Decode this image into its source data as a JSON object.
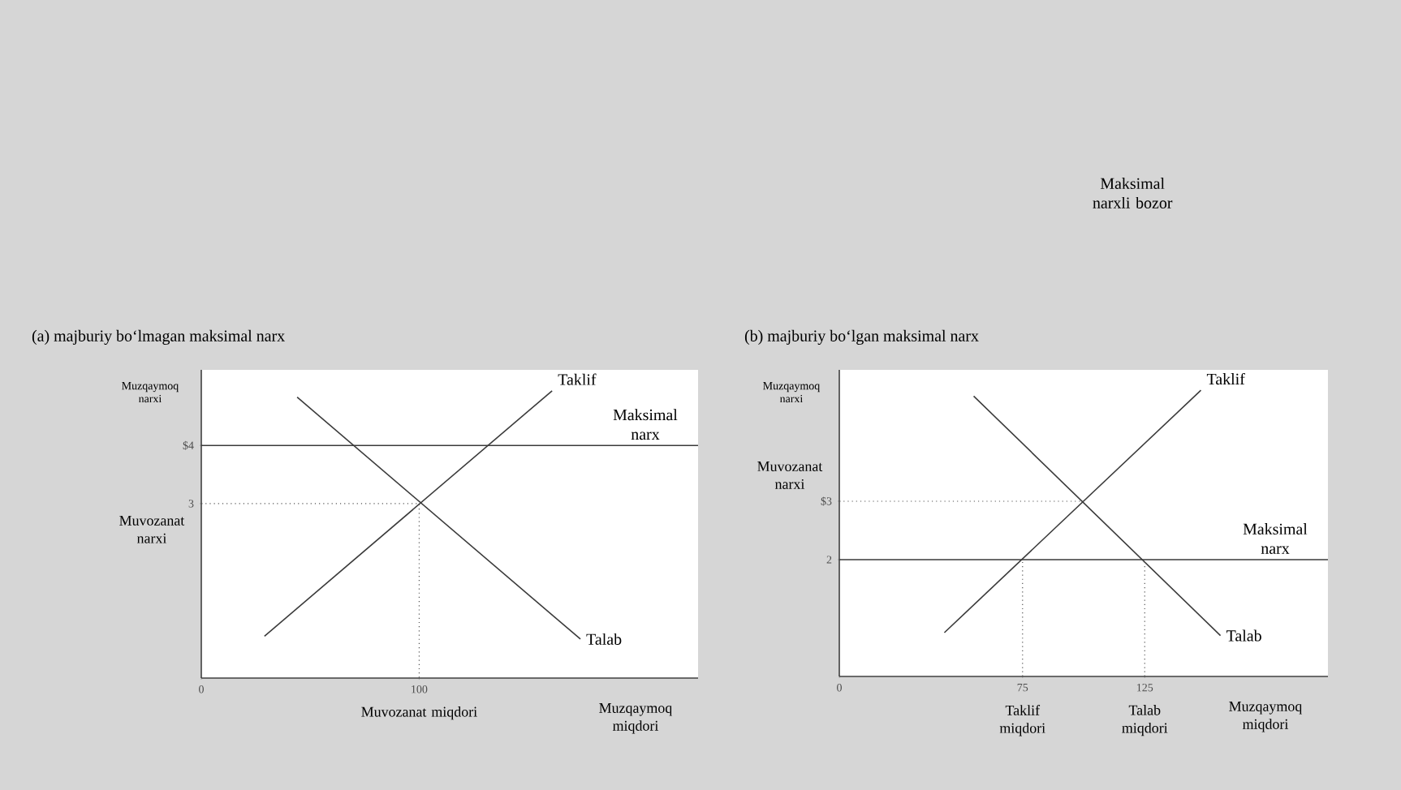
{
  "chart_data": [
    {
      "type": "line",
      "title": "(a) majburiy bo‘lmagan maksimal narx",
      "xlabel": "Muzqaymoq miqdori",
      "ylabel": "Muzqaymoq narxi",
      "xlim": [
        0,
        228
      ],
      "ylim": [
        0,
        5.3
      ],
      "xticks": [
        0,
        100
      ],
      "yticks": [
        3,
        {
          "value": 4,
          "label": "$4"
        }
      ],
      "series": [
        {
          "name": "Taklif",
          "color": "#3a3a3a",
          "x": [
            29,
            161
          ],
          "values": [
            0.72,
            4.94
          ]
        },
        {
          "name": "Talab",
          "color": "#3a3a3a",
          "x": [
            44,
            174
          ],
          "values": [
            4.83,
            0.67
          ]
        },
        {
          "color": "#555555",
          "line_style": "dotted",
          "x": [
            0,
            100,
            100
          ],
          "values": [
            3,
            3,
            0
          ]
        }
      ],
      "ref_lines": [
        {
          "axis": "y",
          "value": 4,
          "label": "Maksimal narx",
          "color": "#3a3a3a"
        }
      ],
      "annotations": [
        {
          "text": "Muvozanat narxi",
          "x": 0,
          "y": 3
        },
        {
          "text": "Muvozanat miqdori",
          "x": 100,
          "y": 0
        }
      ],
      "grid": false,
      "marker": "none"
    },
    {
      "type": "line",
      "title": "(b) majburiy bo‘lgan maksimal narx",
      "xlabel": "Muzqaymoq miqdori",
      "ylabel": "Muzqaymoq narxi",
      "xlim": [
        0,
        200
      ],
      "ylim": [
        0,
        5.25
      ],
      "xticks": [
        0,
        75,
        125
      ],
      "yticks": [
        2,
        {
          "value": 3,
          "label": "$3"
        }
      ],
      "series": [
        {
          "name": "Taklif",
          "color": "#3a3a3a",
          "x": [
            43,
            148
          ],
          "values": [
            0.75,
            4.9
          ]
        },
        {
          "name": "Talab",
          "color": "#3a3a3a",
          "x": [
            55,
            156
          ],
          "values": [
            4.8,
            0.7
          ]
        },
        {
          "color": "#555555",
          "line_style": "dotted",
          "x": [
            0,
            100
          ],
          "values": [
            3,
            3
          ]
        },
        {
          "color": "#555555",
          "line_style": "dotted",
          "x": [
            75,
            75
          ],
          "values": [
            0,
            2
          ]
        },
        {
          "color": "#555555",
          "line_style": "dotted",
          "x": [
            125,
            125
          ],
          "values": [
            0,
            2
          ]
        }
      ],
      "ref_lines": [
        {
          "axis": "y",
          "value": 2,
          "label": "Maksimal narx",
          "color": "#3a3a3a"
        }
      ],
      "annotations": [
        "Maksimal narxli bozor",
        {
          "text": "Muvozanat narxi",
          "x": 0,
          "y": 3
        },
        {
          "text": "Taklif miqdori",
          "x": 75,
          "y": 0
        },
        {
          "text": "Talab miqdori",
          "x": 125,
          "y": 0
        }
      ],
      "grid": false,
      "marker": "none"
    }
  ]
}
